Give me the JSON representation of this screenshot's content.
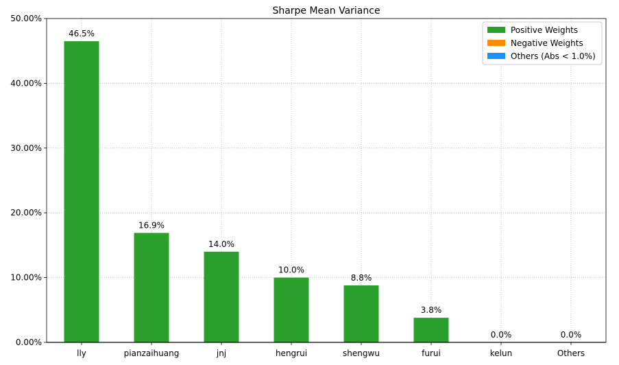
{
  "chart_data": {
    "type": "bar",
    "title": "Sharpe Mean Variance",
    "xlabel": "",
    "ylabel": "",
    "categories": [
      "lly",
      "pianzaihuang",
      "jnj",
      "hengrui",
      "shengwu",
      "furui",
      "kelun",
      "Others"
    ],
    "values": [
      46.5,
      16.9,
      14.0,
      10.0,
      8.8,
      3.8,
      0.0,
      0.0
    ],
    "data_labels": [
      "46.5%",
      "16.9%",
      "14.0%",
      "10.0%",
      "8.8%",
      "3.8%",
      "0.0%",
      "0.0%"
    ],
    "ylim": [
      0,
      50
    ],
    "yticks": [
      0,
      10,
      20,
      30,
      40,
      50
    ],
    "ytick_labels": [
      "0.00%",
      "10.00%",
      "20.00%",
      "30.00%",
      "40.00%",
      "50.00%"
    ],
    "grid": true,
    "legend_position": "top-right",
    "legend": [
      {
        "label": "Positive Weights",
        "color": "#2ca02c"
      },
      {
        "label": "Negative Weights",
        "color": "#ff8c00"
      },
      {
        "label": "Others (Abs < 1.0%)",
        "color": "#1e90ff"
      }
    ],
    "bar_color": "#2ca02c"
  }
}
